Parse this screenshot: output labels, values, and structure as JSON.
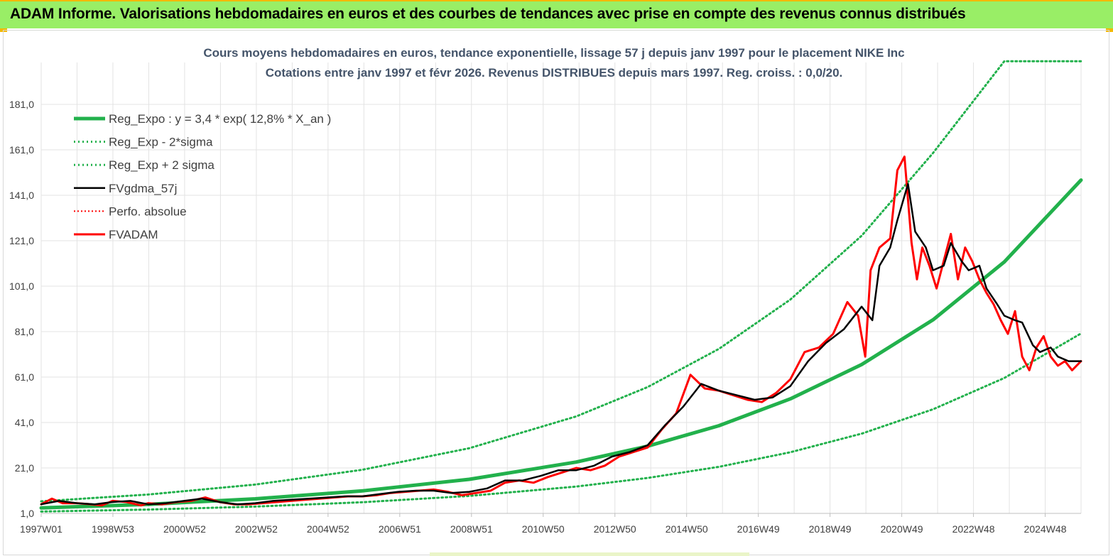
{
  "header": {
    "title": "ADAM Informe. Valorisations hebdomadaires en euros et des courbes de tendances avec prise en compte des revenus connus distribués"
  },
  "chart_data": {
    "type": "line",
    "title_lines": [
      "Cours moyens hebdomadaires en euros, tendance exponentielle, lissage 57 j depuis janv 1997 pour le placement NIKE Inc",
      "Cotations entre janv 1997 et févr 2026. Revenus DISTRIBUES depuis mars 1997. Reg. croiss. : 0,0/20."
    ],
    "x_tick_labels": [
      "1997W01",
      "1998W53",
      "2000W52",
      "2002W52",
      "2004W52",
      "2006W51",
      "2008W51",
      "2010W50",
      "2012W50",
      "2014W50",
      "2016W49",
      "2018W49",
      "2020W49",
      "2022W48",
      "2024W48"
    ],
    "y_tick_labels": [
      "1,0",
      "21,0",
      "41,0",
      "61,0",
      "81,0",
      "101,0",
      "121,0",
      "141,0",
      "161,0",
      "181,0"
    ],
    "ylim": [
      1,
      200
    ],
    "xlim": [
      1997.0,
      2026.15
    ],
    "legend_position": "top-left",
    "grid": true,
    "colors": {
      "reg": "#22b14c",
      "sigma": "#22b14c",
      "fvgdma": "#000000",
      "perfo": "#ff0000",
      "fvadam": "#ff0000"
    },
    "series": [
      {
        "name": "Reg_Expo : y = 3,4 * exp( 12,8% *  X_an )",
        "key": "reg",
        "style": "solid-thick",
        "x": [
          1997,
          2000,
          2003,
          2006,
          2009,
          2012,
          2014,
          2016,
          2018,
          2020,
          2022,
          2024,
          2026.15
        ],
        "y": [
          3.4,
          5.0,
          7.4,
          10.9,
          16.0,
          23.6,
          30.6,
          39.6,
          51.4,
          66.5,
          86.2,
          111.7,
          147.7
        ]
      },
      {
        "name": "Reg_Exp - 2*sigma",
        "key": "sigma_low",
        "style": "dotted",
        "x": [
          1997,
          2000,
          2003,
          2006,
          2009,
          2012,
          2014,
          2016,
          2018,
          2020,
          2022,
          2024,
          2026.15
        ],
        "y": [
          1.8,
          2.7,
          4.0,
          5.9,
          8.7,
          12.8,
          16.6,
          21.5,
          27.9,
          36.1,
          46.8,
          60.6,
          80.2
        ]
      },
      {
        "name": "Reg_Exp + 2 sigma",
        "key": "sigma_high",
        "style": "dotted",
        "x": [
          1997,
          2000,
          2003,
          2006,
          2009,
          2012,
          2014,
          2016,
          2018,
          2020,
          2022,
          2024,
          2026.15
        ],
        "y": [
          6.3,
          9.3,
          13.7,
          20.2,
          29.7,
          43.7,
          56.6,
          73.4,
          95.1,
          123.2,
          159.6,
          200.0,
          200.0
        ]
      },
      {
        "name": "FVgdma_57j",
        "key": "fvgdma",
        "style": "solid-thin",
        "x": [
          1997.0,
          1997.5,
          1998.0,
          1998.5,
          1999.0,
          1999.5,
          2000.0,
          2000.5,
          2001.0,
          2001.5,
          2002.0,
          2002.5,
          2003.0,
          2003.5,
          2004.0,
          2004.5,
          2005.0,
          2005.5,
          2006.0,
          2006.5,
          2007.0,
          2007.5,
          2008.0,
          2008.5,
          2009.0,
          2009.5,
          2010.0,
          2010.5,
          2011.0,
          2011.5,
          2012.0,
          2012.5,
          2013.0,
          2013.5,
          2014.0,
          2014.5,
          2015.0,
          2015.5,
          2016.0,
          2016.5,
          2017.0,
          2017.5,
          2018.0,
          2018.5,
          2019.0,
          2019.5,
          2020.0,
          2020.3,
          2020.5,
          2020.8,
          2021.0,
          2021.3,
          2021.5,
          2021.8,
          2022.0,
          2022.3,
          2022.5,
          2022.8,
          2023.0,
          2023.3,
          2023.5,
          2023.8,
          2024.0,
          2024.3,
          2024.5,
          2024.8,
          2025.0,
          2025.3,
          2025.5,
          2025.8,
          2026.15
        ],
        "y": [
          5.0,
          6.5,
          5.5,
          5.0,
          6.0,
          6.5,
          5.0,
          5.5,
          6.5,
          7.5,
          6.0,
          5.0,
          5.5,
          6.5,
          7.0,
          7.5,
          8.0,
          8.5,
          8.5,
          9.5,
          10.5,
          11.0,
          11.0,
          10.0,
          10.5,
          12.0,
          15.5,
          15.5,
          17.5,
          20.0,
          20.0,
          22.0,
          26.0,
          28.0,
          31.0,
          40.0,
          48.0,
          58.0,
          55.0,
          53.0,
          51.0,
          52.0,
          57.0,
          68.0,
          76.0,
          82.0,
          92.0,
          86.0,
          110.0,
          118.0,
          130.0,
          146.0,
          125.0,
          118.0,
          108.0,
          110.0,
          120.0,
          112.0,
          108.0,
          110.0,
          100.0,
          93.0,
          88.0,
          86.0,
          85.0,
          75.0,
          72.0,
          74.0,
          70.0,
          68.0,
          68.0
        ]
      },
      {
        "name": "Perfo. absolue",
        "key": "perfo",
        "style": "dotted",
        "x": [],
        "y": []
      },
      {
        "name": "FVADAM",
        "key": "fvadam",
        "style": "solid-thick",
        "x": [
          1997.0,
          1997.3,
          1997.6,
          1998.0,
          1998.4,
          1998.7,
          1999.0,
          1999.4,
          1999.8,
          2000.0,
          2000.4,
          2000.8,
          2001.2,
          2001.6,
          2002.0,
          2002.4,
          2002.8,
          2003.2,
          2003.6,
          2004.0,
          2004.4,
          2004.8,
          2005.2,
          2005.6,
          2006.0,
          2006.4,
          2006.8,
          2007.2,
          2007.6,
          2008.0,
          2008.4,
          2008.8,
          2009.2,
          2009.6,
          2010.0,
          2010.4,
          2010.8,
          2011.2,
          2011.6,
          2012.0,
          2012.4,
          2012.8,
          2013.2,
          2013.6,
          2014.0,
          2014.4,
          2014.8,
          2015.2,
          2015.6,
          2016.0,
          2016.4,
          2016.8,
          2017.2,
          2017.6,
          2018.0,
          2018.4,
          2018.8,
          2019.2,
          2019.6,
          2019.9,
          2020.1,
          2020.25,
          2020.5,
          2020.8,
          2021.0,
          2021.2,
          2021.4,
          2021.55,
          2021.7,
          2021.9,
          2022.1,
          2022.3,
          2022.5,
          2022.7,
          2022.9,
          2023.1,
          2023.3,
          2023.5,
          2023.7,
          2023.9,
          2024.1,
          2024.3,
          2024.5,
          2024.7,
          2024.9,
          2025.1,
          2025.3,
          2025.5,
          2025.7,
          2025.9,
          2026.15
        ],
        "y": [
          5.0,
          7.5,
          5.5,
          5.5,
          5.0,
          4.5,
          6.5,
          6.0,
          4.5,
          5.5,
          5.0,
          6.0,
          6.5,
          8.0,
          6.0,
          5.0,
          5.0,
          5.5,
          6.0,
          6.5,
          7.0,
          7.5,
          8.0,
          8.5,
          8.5,
          9.0,
          10.0,
          10.5,
          11.0,
          11.5,
          10.5,
          9.0,
          10.0,
          11.0,
          14.5,
          15.5,
          14.5,
          17.0,
          19.0,
          21.0,
          20.0,
          22.0,
          26.0,
          28.0,
          30.0,
          38.0,
          45.0,
          62.0,
          56.0,
          55.0,
          53.0,
          51.0,
          50.0,
          54.0,
          60.0,
          72.0,
          74.0,
          80.0,
          94.0,
          88.0,
          70.0,
          108.0,
          118.0,
          122.0,
          152.0,
          158.0,
          120.0,
          104.0,
          118.0,
          110.0,
          100.0,
          112.0,
          124.0,
          104.0,
          118.0,
          112.0,
          104.0,
          98.0,
          93.0,
          86.0,
          80.0,
          90.0,
          70.0,
          64.0,
          74.0,
          79.0,
          70.0,
          66.0,
          68.0,
          64.0,
          68.0
        ]
      }
    ]
  }
}
